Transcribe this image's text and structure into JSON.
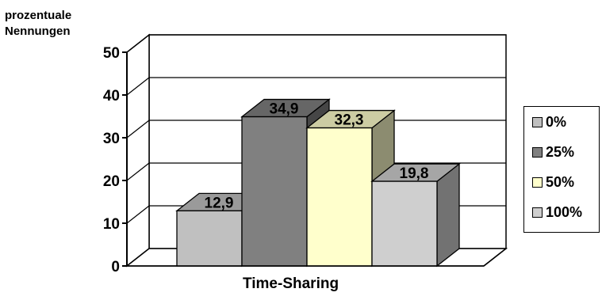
{
  "chart_data": {
    "type": "bar",
    "ylabel_lines": [
      "prozentuale",
      "Nennungen"
    ],
    "xlabel": "Time-Sharing",
    "categories": [
      "Time-Sharing"
    ],
    "ylim": [
      0,
      50
    ],
    "yticks": [
      "0",
      "10",
      "20",
      "30",
      "40",
      "50"
    ],
    "series": [
      {
        "name": "0%",
        "values": [
          12.9
        ],
        "label": "12,9",
        "color": "#c0c0c0"
      },
      {
        "name": "25%",
        "values": [
          34.9
        ],
        "label": "34,9",
        "color": "#808080"
      },
      {
        "name": "50%",
        "values": [
          32.3
        ],
        "label": "32,3",
        "color": "#ffffcc"
      },
      {
        "name": "100%",
        "values": [
          19.8
        ],
        "label": "19,8",
        "color": "#cfcfcf"
      }
    ],
    "grid": true,
    "legend_position": "right",
    "three_d": true
  }
}
